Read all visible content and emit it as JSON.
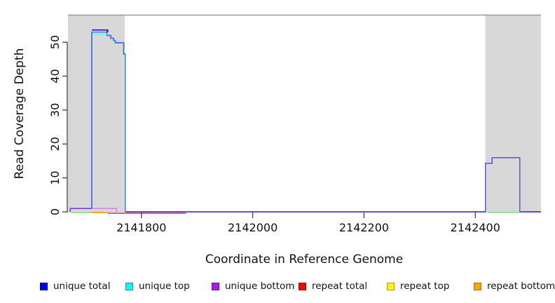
{
  "plot": {
    "y_axis": {
      "title": "Read Coverage Depth",
      "ticks": [
        0,
        10,
        20,
        30,
        40,
        50
      ]
    },
    "x_axis": {
      "title": "Coordinate in Reference Genome",
      "ticks": [
        2141800,
        2142000,
        2142200,
        2142400
      ]
    }
  },
  "legend": {
    "items": [
      {
        "label": "unique total",
        "color": "#0000ee",
        "border": "#000090"
      },
      {
        "label": "unique top",
        "color": "#00ffff",
        "border": "#009a9a"
      },
      {
        "label": "unique bottom",
        "color": "#a020f0",
        "border": "#6a0dad"
      },
      {
        "label": "repeat total",
        "color": "#ff0000",
        "border": "#990000"
      },
      {
        "label": "repeat top",
        "color": "#ffff00",
        "border": "#cc8800"
      },
      {
        "label": "repeat bottom",
        "color": "#ffa500",
        "border": "#b06f00"
      }
    ]
  },
  "chart_data": {
    "type": "line",
    "title": "",
    "xlabel": "Coordinate in Reference Genome",
    "ylabel": "Read Coverage Depth",
    "xlim": [
      2141668,
      2142518
    ],
    "ylim": [
      0,
      58.1
    ],
    "grid": false,
    "legend_position": "bottom",
    "frame_top_line_color": "#9a9a9a",
    "shaded_regions": [
      {
        "name": "left-repeat-band",
        "x0": 2141668,
        "x1": 2141770,
        "color": "#d8d8d8"
      },
      {
        "name": "right-repeat-band",
        "x0": 2142418,
        "x1": 2142518,
        "color": "#d8d8d8"
      }
    ],
    "series": [
      {
        "id": "coverage-main-left-peak",
        "color": "#4b7ce8",
        "width": 1.8,
        "dy": 0,
        "points": [
          [
            2141672,
            0
          ],
          [
            2141672,
            1
          ],
          [
            2141711,
            1
          ],
          [
            2141711,
            53
          ],
          [
            2141738,
            53
          ],
          [
            2141738,
            52
          ],
          [
            2141745,
            52
          ],
          [
            2141745,
            51.2
          ],
          [
            2141750,
            51.2
          ],
          [
            2141750,
            50.5
          ],
          [
            2141753,
            50.5
          ],
          [
            2141753,
            49.8
          ],
          [
            2141768,
            49.8
          ],
          [
            2141768,
            46.5
          ],
          [
            2141771,
            46.5
          ],
          [
            2141771,
            0
          ]
        ]
      },
      {
        "id": "unique-total-cap",
        "color": "#0b0bd0",
        "width": 1.8,
        "dy": -3,
        "points": [
          [
            2141711,
            53
          ],
          [
            2141739,
            53
          ],
          [
            2141739,
            52.3
          ]
        ]
      },
      {
        "id": "unique-top-cap",
        "color": "#80f0dd",
        "width": 1.6,
        "dy": -1.5,
        "points": [
          [
            2141713,
            52
          ],
          [
            2141738,
            52
          ]
        ]
      },
      {
        "id": "unique-bottom-over-blue",
        "color": "#7433dd",
        "width": 1.6,
        "dy": 0,
        "points": [
          [
            2141672,
            0
          ],
          [
            2141672,
            1
          ],
          [
            2141711,
            1
          ]
        ]
      },
      {
        "id": "unique-bottom-solo",
        "color": "#c787ea",
        "width": 1.6,
        "dy": 0,
        "points": [
          [
            2141711,
            1
          ],
          [
            2141755,
            1
          ],
          [
            2141755,
            0
          ]
        ]
      },
      {
        "id": "baseline-and-right-bump",
        "color": "#6050e2",
        "width": 1.6,
        "dy": 0,
        "points": [
          [
            2141771,
            0
          ],
          [
            2142418,
            0
          ],
          [
            2142418,
            14.3
          ],
          [
            2142430,
            14.3
          ],
          [
            2142430,
            16
          ],
          [
            2142480,
            16
          ],
          [
            2142480,
            0
          ],
          [
            2142518,
            0
          ]
        ]
      },
      {
        "id": "green-baseline-left",
        "color": "#9adf9a",
        "width": 1.6,
        "dy": 1,
        "points": [
          [
            2141674,
            0
          ],
          [
            2141711,
            0
          ]
        ]
      },
      {
        "id": "green-baseline-right",
        "color": "#9adf9a",
        "width": 1.6,
        "dy": 1,
        "points": [
          [
            2142422,
            0
          ],
          [
            2142480,
            0
          ]
        ]
      },
      {
        "id": "repeat-bottom-baseline",
        "color": "#ffa51e",
        "width": 1.6,
        "dy": 1,
        "points": [
          [
            2141711,
            0
          ],
          [
            2141740,
            0
          ]
        ]
      },
      {
        "id": "repeat-total-baseline",
        "color": "#ee5f78",
        "width": 1.6,
        "dy": 2,
        "points": [
          [
            2141740,
            0
          ],
          [
            2141880,
            0
          ]
        ]
      }
    ]
  }
}
